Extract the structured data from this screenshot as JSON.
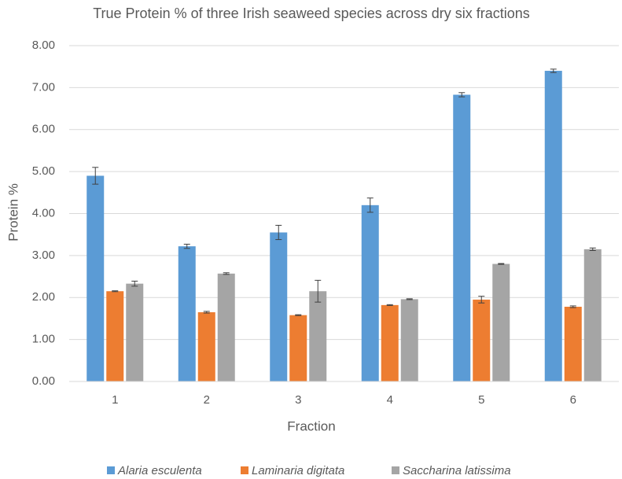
{
  "chart_data": {
    "type": "bar",
    "title": "True Protein % of three Irish seaweed species across dry six fractions",
    "x_label": "Fraction",
    "y_label": "Protein %",
    "categories": [
      "1",
      "2",
      "3",
      "4",
      "5",
      "6"
    ],
    "series": [
      {
        "name": "Alaria esculenta",
        "color": "#5b9bd5",
        "values": [
          4.9,
          3.22,
          3.55,
          4.2,
          6.83,
          7.4
        ],
        "errors": [
          0.2,
          0.05,
          0.17,
          0.17,
          0.05,
          0.04
        ]
      },
      {
        "name": "Laminaria digitata",
        "color": "#ed7d31",
        "values": [
          2.15,
          1.65,
          1.58,
          1.82,
          1.95,
          1.78
        ],
        "errors": [
          0.01,
          0.02,
          0.01,
          0.01,
          0.08,
          0.02
        ]
      },
      {
        "name": "Saccharina latissima",
        "color": "#a5a5a5",
        "values": [
          2.33,
          2.57,
          2.15,
          1.96,
          2.8,
          3.15
        ],
        "errors": [
          0.06,
          0.02,
          0.26,
          0.01,
          0.01,
          0.03
        ]
      }
    ],
    "ylim": [
      0,
      8
    ],
    "yticks": [
      {
        "value": 0,
        "label": "0.00"
      },
      {
        "value": 1,
        "label": "1.00"
      },
      {
        "value": 2,
        "label": "2.00"
      },
      {
        "value": 3,
        "label": "3.00"
      },
      {
        "value": 4,
        "label": "4.00"
      },
      {
        "value": 5,
        "label": "5.00"
      },
      {
        "value": 6,
        "label": "6.00"
      },
      {
        "value": 7,
        "label": "7.00"
      },
      {
        "value": 8,
        "label": "8.00"
      }
    ],
    "grid": true,
    "legend": "bottom"
  }
}
